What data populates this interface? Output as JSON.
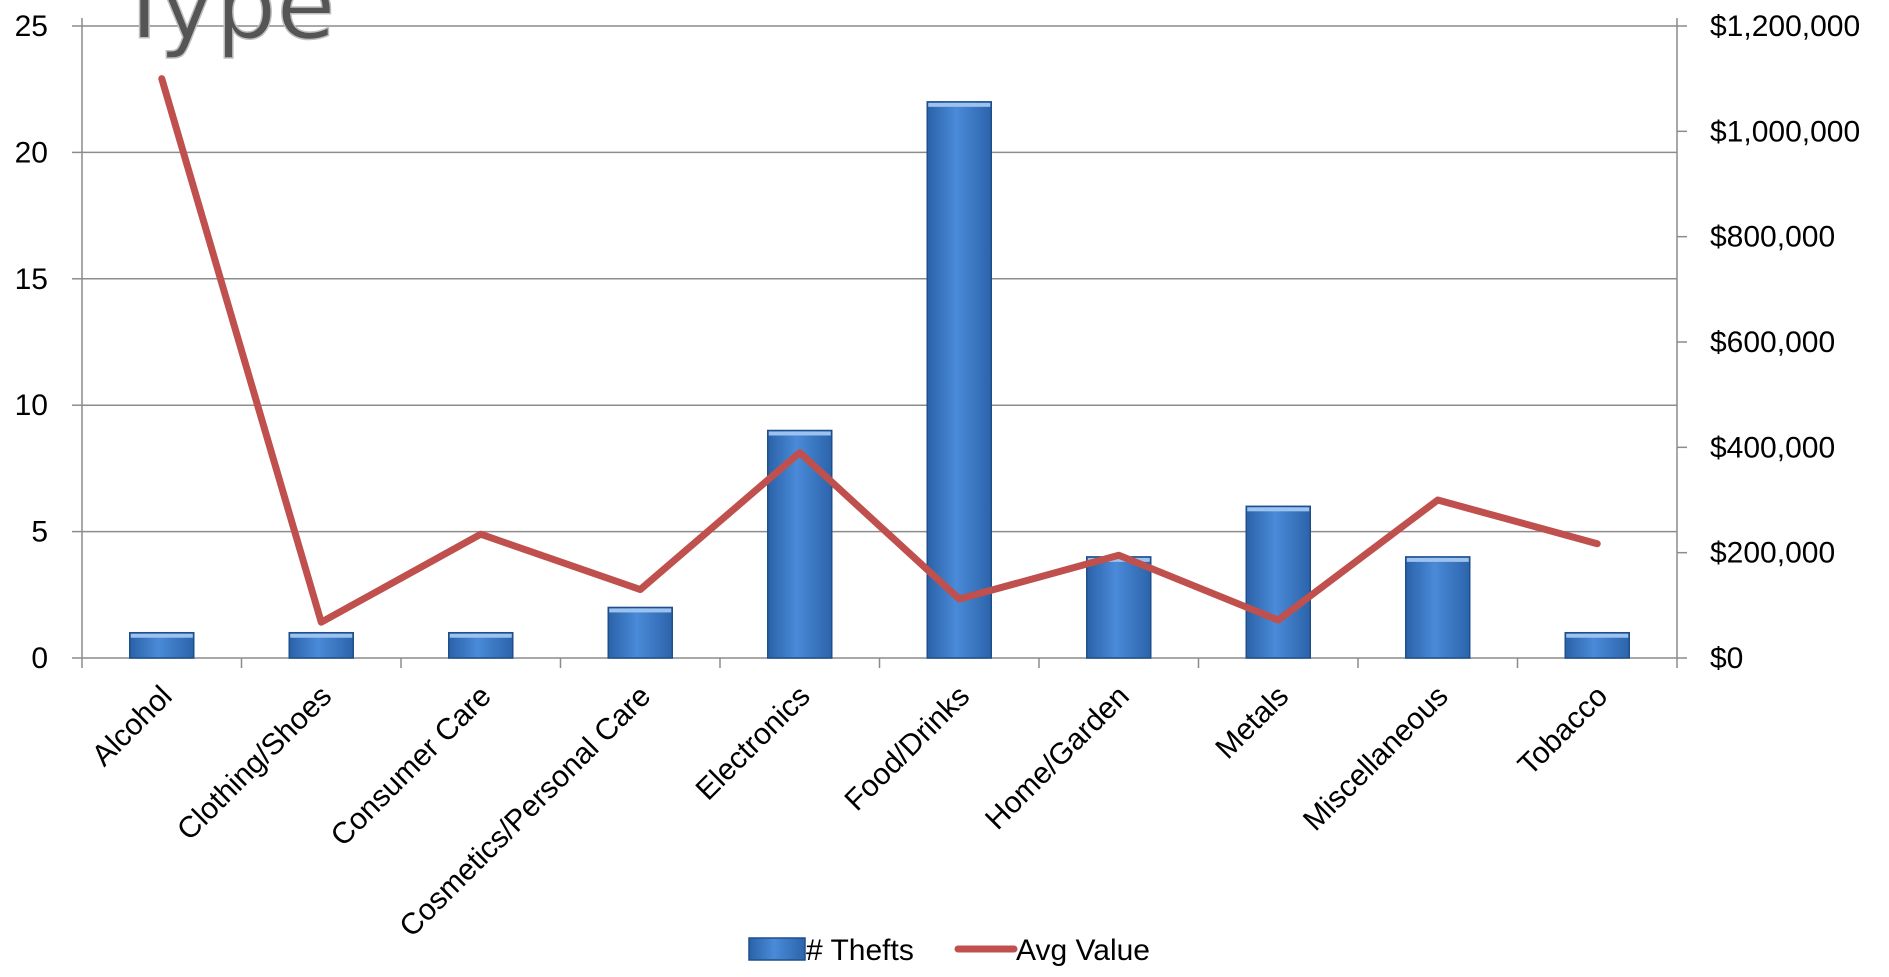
{
  "chart_data": {
    "type": "bar",
    "title_fragment": "Type",
    "categories": [
      "Alcohol",
      "Clothing/Shoes",
      "Consumer Care",
      "Cosmetics/Personal Care",
      "Electronics",
      "Food/Drinks",
      "Home/Garden",
      "Metals",
      "Miscellaneous",
      "Tobacco"
    ],
    "series": [
      {
        "name": "# Thefts",
        "type": "bar",
        "axis": "left",
        "color": "#3f7fcf",
        "values": [
          1,
          1,
          1,
          2,
          9,
          22,
          4,
          6,
          4,
          1
        ]
      },
      {
        "name": "Avg Value",
        "type": "line",
        "axis": "right",
        "color": "#c0504d",
        "values": [
          1100000,
          68000,
          235000,
          130000,
          390000,
          112000,
          195000,
          72000,
          300000,
          217000
        ]
      }
    ],
    "y_left": {
      "lim": [
        0,
        25
      ],
      "ticks": [
        0,
        5,
        10,
        15,
        20,
        25
      ],
      "tick_labels": [
        "0",
        "5",
        "10",
        "15",
        "20",
        "25"
      ]
    },
    "y_right": {
      "lim": [
        0,
        1200000
      ],
      "ticks": [
        0,
        200000,
        400000,
        600000,
        800000,
        1000000,
        1200000
      ],
      "tick_labels": [
        "$0",
        "$200,000",
        "$400,000",
        "$600,000",
        "$800,000",
        "$1,000,000",
        "$1,200,000"
      ]
    },
    "grid": true,
    "legend": {
      "position": "bottom",
      "items": [
        "# Thefts",
        "Avg Value"
      ]
    }
  }
}
